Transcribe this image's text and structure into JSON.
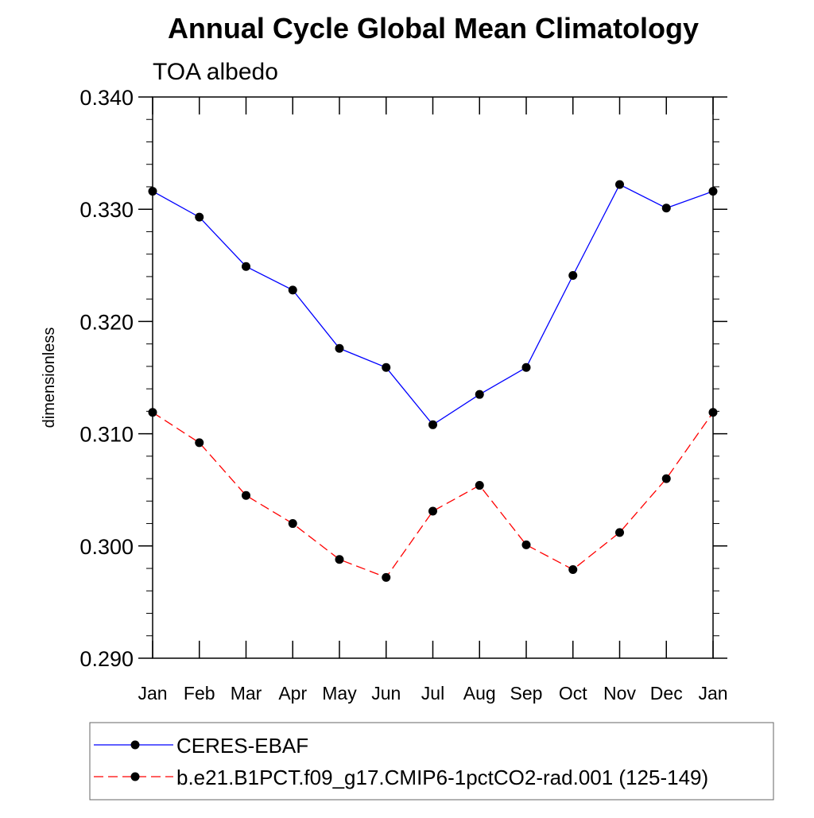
{
  "chart_data": {
    "type": "line",
    "title": "Annual Cycle Global Mean Climatology",
    "subtitle": "TOA albedo",
    "xlabel": "",
    "ylabel": "dimensionless",
    "categories": [
      "Jan",
      "Feb",
      "Mar",
      "Apr",
      "May",
      "Jun",
      "Jul",
      "Aug",
      "Sep",
      "Oct",
      "Nov",
      "Dec",
      "Jan"
    ],
    "yticks": [
      "0.290",
      "0.300",
      "0.310",
      "0.320",
      "0.330",
      "0.340"
    ],
    "ylim": [
      0.29,
      0.34
    ],
    "grid": false,
    "legend_position": "bottom",
    "series": [
      {
        "name": "CERES-EBAF",
        "color": "#0000ff",
        "dash": "solid",
        "values": [
          0.3316,
          0.3293,
          0.3249,
          0.3228,
          0.3176,
          0.3159,
          0.3108,
          0.3135,
          0.3159,
          0.3241,
          0.3322,
          0.3301,
          0.3316
        ]
      },
      {
        "name": "b.e21.B1PCT.f09_g17.CMIP6-1pctCO2-rad.001 (125-149)",
        "color": "#ff0000",
        "dash": "dashed",
        "values": [
          0.3119,
          0.3092,
          0.3045,
          0.302,
          0.2988,
          0.2972,
          0.3031,
          0.3054,
          0.3001,
          0.2979,
          0.3012,
          0.306,
          0.3119
        ]
      }
    ]
  }
}
